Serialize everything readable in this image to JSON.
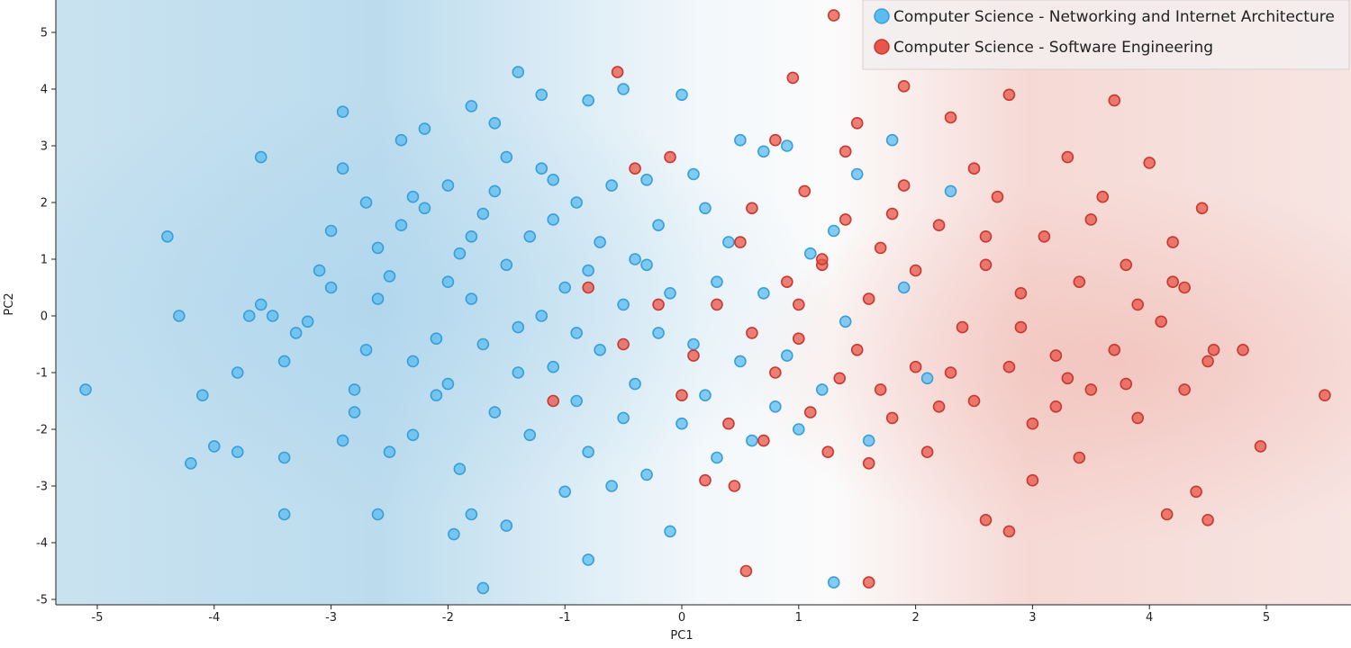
{
  "chart_data": {
    "type": "scatter",
    "title": "",
    "xlabel": "PC1",
    "ylabel": "PC2",
    "xlim": [
      -5.4,
      5.8
    ],
    "ylim": [
      -5.2,
      5.5
    ],
    "x_ticks": [
      "-5",
      "-4",
      "-3",
      "-2",
      "-1",
      "0",
      "1",
      "2",
      "3",
      "4",
      "5"
    ],
    "y_ticks": [
      "-5",
      "-4",
      "-3",
      "-2",
      "-1",
      "0",
      "1",
      "2",
      "3",
      "4",
      "5"
    ],
    "grid": false,
    "legend_position": "top-right",
    "background": "class-probability gradient (blue left, red right)",
    "series": [
      {
        "name": "Computer Science - Networking and Internet Architecture",
        "color": "#5bbcf0",
        "edge": "#3a9fd8",
        "points": [
          [
            -5.1,
            -1.3
          ],
          [
            -4.4,
            1.4
          ],
          [
            -4.3,
            0.0
          ],
          [
            -4.2,
            -2.6
          ],
          [
            -4.1,
            -1.4
          ],
          [
            -4.0,
            -2.3
          ],
          [
            -3.8,
            -1.0
          ],
          [
            -3.7,
            0.0
          ],
          [
            -3.6,
            0.2
          ],
          [
            -3.6,
            2.8
          ],
          [
            -3.5,
            0.0
          ],
          [
            -3.4,
            -0.8
          ],
          [
            -3.4,
            -3.5
          ],
          [
            -3.4,
            -2.5
          ],
          [
            -3.3,
            -0.3
          ],
          [
            -3.2,
            -0.1
          ],
          [
            -3.1,
            0.8
          ],
          [
            -3.0,
            0.5
          ],
          [
            -3.0,
            1.5
          ],
          [
            -2.9,
            2.6
          ],
          [
            -2.9,
            3.6
          ],
          [
            -2.8,
            -1.3
          ],
          [
            -2.8,
            -1.7
          ],
          [
            -2.7,
            2.0
          ],
          [
            -2.6,
            0.3
          ],
          [
            -2.6,
            1.2
          ],
          [
            -2.5,
            -2.4
          ],
          [
            -2.5,
            0.7
          ],
          [
            -2.4,
            3.1
          ],
          [
            -2.4,
            1.6
          ],
          [
            -2.3,
            -0.8
          ],
          [
            -2.3,
            2.1
          ],
          [
            -2.2,
            3.3
          ],
          [
            -2.2,
            1.9
          ],
          [
            -2.1,
            -0.4
          ],
          [
            -2.1,
            -1.4
          ],
          [
            -2.0,
            -1.2
          ],
          [
            -2.0,
            0.6
          ],
          [
            -2.0,
            2.3
          ],
          [
            -1.9,
            1.1
          ],
          [
            -1.9,
            -2.7
          ],
          [
            -1.8,
            3.7
          ],
          [
            -1.8,
            -3.5
          ],
          [
            -1.8,
            0.3
          ],
          [
            -1.7,
            1.8
          ],
          [
            -1.7,
            -0.5
          ],
          [
            -1.6,
            3.4
          ],
          [
            -1.6,
            2.2
          ],
          [
            -1.6,
            -1.7
          ],
          [
            -1.5,
            0.9
          ],
          [
            -1.5,
            -3.7
          ],
          [
            -1.5,
            2.8
          ],
          [
            -1.4,
            -0.2
          ],
          [
            -1.4,
            4.3
          ],
          [
            -1.3,
            1.4
          ],
          [
            -1.3,
            -2.1
          ],
          [
            -1.2,
            0.0
          ],
          [
            -1.2,
            2.6
          ],
          [
            -1.1,
            -0.9
          ],
          [
            -1.1,
            1.7
          ],
          [
            -1.0,
            -3.1
          ],
          [
            -1.0,
            0.5
          ],
          [
            -0.9,
            2.0
          ],
          [
            -0.9,
            -1.5
          ],
          [
            -0.8,
            3.8
          ],
          [
            -0.8,
            0.8
          ],
          [
            -0.8,
            -2.4
          ],
          [
            -0.7,
            1.3
          ],
          [
            -0.7,
            -0.6
          ],
          [
            -0.6,
            2.3
          ],
          [
            -0.6,
            -3.0
          ],
          [
            -0.5,
            0.2
          ],
          [
            -0.5,
            4.0
          ],
          [
            -0.4,
            -1.2
          ],
          [
            -0.4,
            1.0
          ],
          [
            -0.3,
            -2.8
          ],
          [
            -0.3,
            2.4
          ],
          [
            -0.2,
            -0.3
          ],
          [
            -0.2,
            1.6
          ],
          [
            -0.1,
            -3.8
          ],
          [
            -0.1,
            0.4
          ],
          [
            0.0,
            -1.9
          ],
          [
            0.0,
            3.9
          ],
          [
            0.1,
            -0.5
          ],
          [
            0.1,
            2.5
          ],
          [
            0.2,
            -1.4
          ],
          [
            0.3,
            0.6
          ],
          [
            0.3,
            -2.5
          ],
          [
            0.4,
            1.3
          ],
          [
            0.5,
            -0.8
          ],
          [
            0.5,
            3.1
          ],
          [
            0.6,
            -2.2
          ],
          [
            0.7,
            0.4
          ],
          [
            0.7,
            2.9
          ],
          [
            0.8,
            -1.6
          ],
          [
            0.9,
            3.0
          ],
          [
            0.9,
            -0.7
          ],
          [
            1.0,
            -2.0
          ],
          [
            1.1,
            1.1
          ],
          [
            1.2,
            -1.3
          ],
          [
            1.3,
            1.5
          ],
          [
            1.3,
            -4.7
          ],
          [
            1.4,
            -0.1
          ],
          [
            1.5,
            2.5
          ],
          [
            1.6,
            -2.2
          ],
          [
            1.8,
            3.1
          ],
          [
            1.9,
            0.5
          ],
          [
            2.1,
            -1.1
          ],
          [
            2.3,
            2.2
          ],
          [
            -1.7,
            -4.8
          ],
          [
            -1.95,
            -3.85
          ],
          [
            -0.8,
            -4.3
          ],
          [
            -2.6,
            -3.5
          ],
          [
            -1.2,
            3.9
          ],
          [
            -2.9,
            -2.2
          ],
          [
            -3.8,
            -2.4
          ],
          [
            -2.3,
            -2.1
          ],
          [
            -1.4,
            -1.0
          ],
          [
            -0.9,
            -0.3
          ],
          [
            -0.3,
            0.9
          ],
          [
            0.2,
            1.9
          ],
          [
            -2.7,
            -0.6
          ],
          [
            -1.8,
            1.4
          ],
          [
            -1.1,
            2.4
          ],
          [
            -0.5,
            -1.8
          ]
        ]
      },
      {
        "name": "Computer Science - Software Engineering",
        "color": "#e8554a",
        "edge": "#c73a30",
        "points": [
          [
            -0.55,
            4.3
          ],
          [
            -0.4,
            2.6
          ],
          [
            -0.1,
            2.8
          ],
          [
            -0.8,
            0.5
          ],
          [
            -1.1,
            -1.5
          ],
          [
            -0.5,
            -0.5
          ],
          [
            0.0,
            -1.4
          ],
          [
            0.2,
            -2.9
          ],
          [
            0.4,
            -1.9
          ],
          [
            0.45,
            -3.0
          ],
          [
            0.55,
            -4.5
          ],
          [
            0.6,
            -0.3
          ],
          [
            0.7,
            -2.2
          ],
          [
            0.8,
            -1.0
          ],
          [
            0.8,
            3.1
          ],
          [
            0.9,
            0.6
          ],
          [
            0.95,
            4.2
          ],
          [
            1.0,
            -0.4
          ],
          [
            1.05,
            2.2
          ],
          [
            1.1,
            -1.7
          ],
          [
            1.2,
            0.9
          ],
          [
            1.25,
            -2.4
          ],
          [
            1.3,
            5.3
          ],
          [
            1.35,
            -1.1
          ],
          [
            1.4,
            1.7
          ],
          [
            1.5,
            -0.6
          ],
          [
            1.5,
            3.4
          ],
          [
            1.6,
            0.3
          ],
          [
            1.6,
            -2.6
          ],
          [
            1.7,
            1.2
          ],
          [
            1.8,
            -1.8
          ],
          [
            1.9,
            2.3
          ],
          [
            1.9,
            4.05
          ],
          [
            2.0,
            -0.9
          ],
          [
            2.0,
            0.8
          ],
          [
            2.1,
            -2.4
          ],
          [
            2.2,
            1.6
          ],
          [
            2.3,
            3.5
          ],
          [
            2.4,
            -0.2
          ],
          [
            2.5,
            -1.5
          ],
          [
            2.6,
            0.9
          ],
          [
            2.6,
            -3.6
          ],
          [
            2.7,
            2.1
          ],
          [
            2.8,
            -0.9
          ],
          [
            2.8,
            3.9
          ],
          [
            2.9,
            0.4
          ],
          [
            3.0,
            -1.9
          ],
          [
            3.0,
            -2.9
          ],
          [
            3.1,
            1.4
          ],
          [
            3.2,
            -0.7
          ],
          [
            3.3,
            2.8
          ],
          [
            3.4,
            0.6
          ],
          [
            3.4,
            -2.5
          ],
          [
            3.5,
            -1.3
          ],
          [
            3.6,
            2.1
          ],
          [
            3.7,
            3.8
          ],
          [
            3.7,
            -0.6
          ],
          [
            3.8,
            0.9
          ],
          [
            3.9,
            -1.8
          ],
          [
            4.0,
            2.7
          ],
          [
            4.1,
            -0.1
          ],
          [
            4.15,
            -3.5
          ],
          [
            4.2,
            0.6
          ],
          [
            4.3,
            -1.3
          ],
          [
            4.4,
            -3.1
          ],
          [
            4.45,
            1.9
          ],
          [
            4.5,
            -0.8
          ],
          [
            4.5,
            -3.6
          ],
          [
            4.55,
            -0.6
          ],
          [
            4.8,
            -0.6
          ],
          [
            4.95,
            -2.3
          ],
          [
            5.5,
            -1.4
          ],
          [
            1.6,
            -4.7
          ],
          [
            2.8,
            -3.8
          ],
          [
            3.2,
            -1.6
          ],
          [
            2.3,
            -1.0
          ],
          [
            1.8,
            1.8
          ],
          [
            1.2,
            1.0
          ],
          [
            0.6,
            1.9
          ],
          [
            0.3,
            0.2
          ],
          [
            0.1,
            -0.7
          ],
          [
            2.5,
            2.6
          ],
          [
            3.9,
            0.2
          ],
          [
            4.2,
            1.3
          ],
          [
            1.4,
            2.9
          ],
          [
            2.9,
            -0.2
          ],
          [
            3.5,
            1.7
          ],
          [
            2.2,
            -1.6
          ],
          [
            1.0,
            0.2
          ],
          [
            0.5,
            1.3
          ],
          [
            -0.2,
            0.2
          ],
          [
            1.7,
            -1.3
          ],
          [
            2.6,
            1.4
          ],
          [
            3.3,
            -1.1
          ],
          [
            3.8,
            -1.2
          ],
          [
            4.3,
            0.5
          ]
        ]
      }
    ]
  }
}
